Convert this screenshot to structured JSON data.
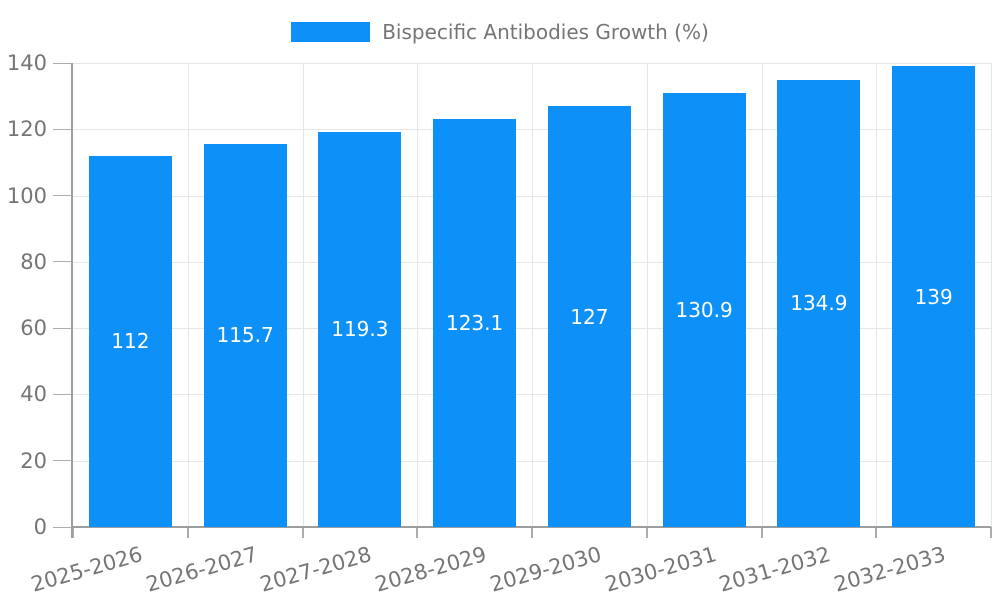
{
  "legend": {
    "label": "Bispecific Antibodies Growth (%)"
  },
  "chart_data": {
    "type": "bar",
    "title": "Bispecific Antibodies Growth (%)",
    "categories": [
      "2025-2026",
      "2026-2027",
      "2027-2028",
      "2028-2029",
      "2029-2030",
      "2030-2031",
      "2031-2032",
      "2032-2033"
    ],
    "values": [
      112,
      115.7,
      119.3,
      123.1,
      127,
      130.9,
      134.9,
      139
    ],
    "xlabel": "",
    "ylabel": "",
    "ylim": [
      0,
      140
    ],
    "ytick_step": 20,
    "ytick_labels": [
      "0",
      "20",
      "40",
      "60",
      "80",
      "100",
      "120",
      "140"
    ],
    "grid": true,
    "legend_position": "top",
    "value_labels_inside_bars": true,
    "colors": {
      "bar": "#0d90f8",
      "value_label": "#ffffff",
      "grid": "#e6e6e6",
      "axis": "#9e9e9e",
      "tick": "#adadad",
      "tick_label": "#757575",
      "background": "#ffffff"
    }
  }
}
